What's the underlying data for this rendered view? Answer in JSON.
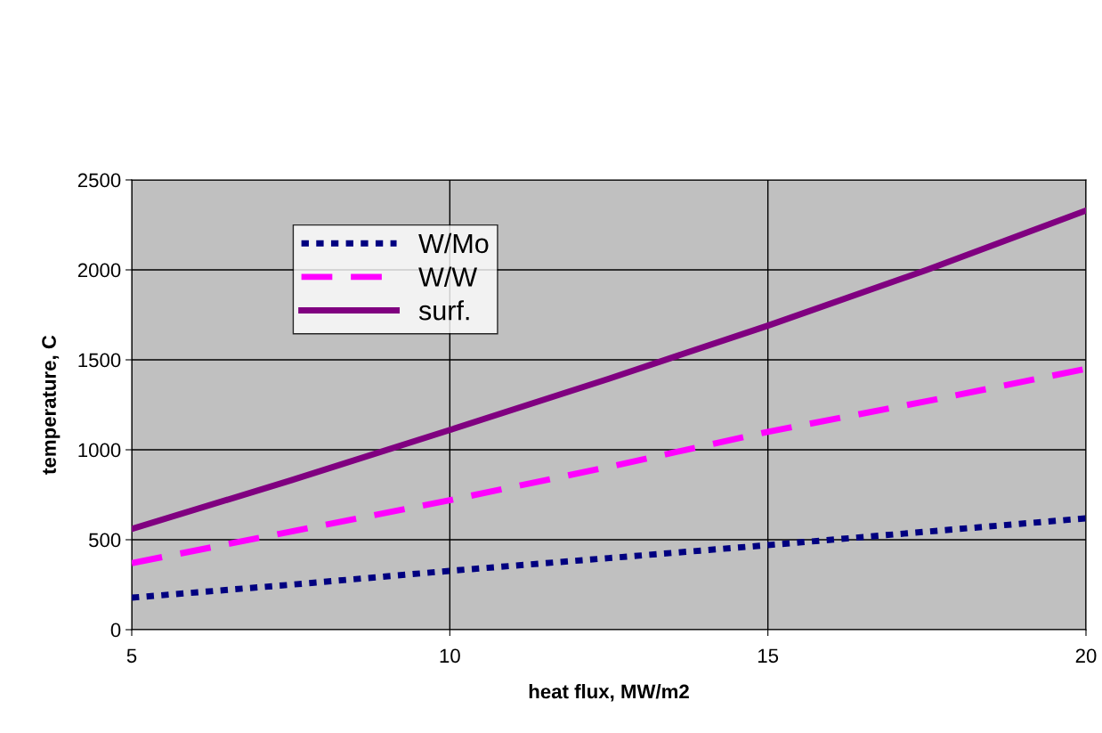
{
  "chart_data": {
    "type": "line",
    "xlabel": "heat flux, MW/m2",
    "ylabel": "temperature, C",
    "xlim": [
      5,
      20
    ],
    "xticks": [
      5,
      10,
      15,
      20
    ],
    "ylim": [
      0,
      2500
    ],
    "yticks": [
      0,
      500,
      1000,
      1500,
      2000,
      2500
    ],
    "grid": true,
    "legend": "top left",
    "marker": "none",
    "series": [
      {
        "name": "W/Mo",
        "color": "#000080",
        "line_style": "dotted",
        "x": [
          5,
          7.5,
          10,
          12.5,
          15,
          17.5,
          20
        ],
        "values": [
          178,
          250,
          327,
          398,
          470,
          545,
          619
        ]
      },
      {
        "name": "W/W",
        "color": "#ff00ff",
        "line_style": "dashed",
        "x": [
          5,
          7.5,
          10,
          12.5,
          15,
          17.5,
          20
        ],
        "values": [
          370,
          545,
          720,
          905,
          1100,
          1270,
          1450
        ]
      },
      {
        "name": "surf.",
        "color": "#800080",
        "line_style": "solid",
        "x": [
          5,
          7.5,
          10,
          12.5,
          15,
          17.5,
          20
        ],
        "values": [
          560,
          830,
          1110,
          1395,
          1690,
          2000,
          2330
        ]
      }
    ]
  }
}
